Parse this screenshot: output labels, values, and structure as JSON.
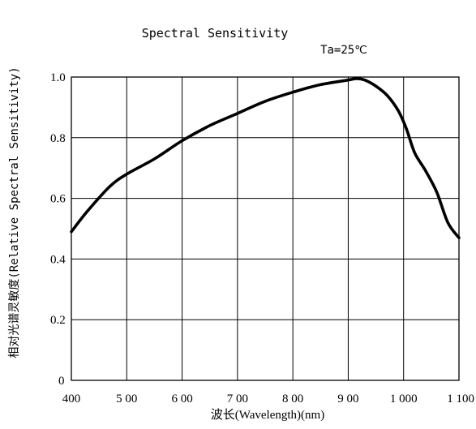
{
  "chart_data": {
    "type": "line",
    "title": "Spectral Sensitivity",
    "condition": "Ta=25℃",
    "xlabel": "波长(Wavelength)(nm)",
    "ylabel": "相对光谱灵敏度(Relative Spectral Sensitivity)",
    "xlim": [
      400,
      1100
    ],
    "ylim": [
      0,
      1.0
    ],
    "x_ticks": [
      400,
      500,
      600,
      700,
      800,
      900,
      1000,
      1100
    ],
    "x_tick_labels": [
      "400",
      "5 00",
      "6 00",
      "7 00",
      "8 00",
      "9 00",
      "1 000",
      "1 100"
    ],
    "y_ticks": [
      0,
      0.2,
      0.4,
      0.6,
      0.8,
      1.0
    ],
    "y_tick_labels": [
      "0",
      "0.2",
      "0.4",
      "0.6",
      "0.8",
      "1.0"
    ],
    "grid": true,
    "line_color": "#000000",
    "series": [
      {
        "x": [
          400,
          430,
          470,
          500,
          550,
          600,
          650,
          700,
          750,
          800,
          850,
          900,
          915,
          930,
          950,
          970,
          990,
          1005,
          1020,
          1040,
          1060,
          1080,
          1100
        ],
        "values": [
          0.49,
          0.56,
          0.64,
          0.68,
          0.73,
          0.79,
          0.84,
          0.88,
          0.92,
          0.95,
          0.975,
          0.99,
          0.995,
          0.99,
          0.97,
          0.94,
          0.89,
          0.83,
          0.75,
          0.69,
          0.62,
          0.52,
          0.47
        ]
      }
    ]
  }
}
